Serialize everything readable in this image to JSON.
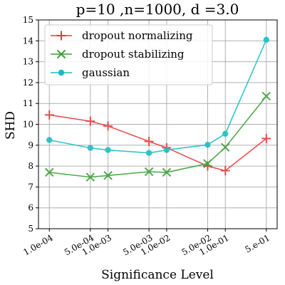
{
  "chart_data": {
    "type": "line",
    "title": "p=10 ,n=1000, d =3.0",
    "xlabel": "Significance Level",
    "ylabel": "SHD",
    "ylim": [
      5,
      15
    ],
    "yticks": [
      5,
      6,
      7,
      8,
      9,
      10,
      11,
      12,
      13,
      14,
      15
    ],
    "x": [
      0.0001,
      0.0005,
      0.001,
      0.005,
      0.01,
      0.05,
      0.1,
      0.5
    ],
    "x_scale": "log",
    "xtick_labels": [
      "1.0e-04",
      "5.0e-04",
      "1.0e-03",
      "5.0e-03",
      "1.0e-02",
      "5.0e-02",
      "1.0e-01",
      "5.e-01"
    ],
    "grid": true,
    "legend_position": "top-left",
    "series": [
      {
        "name": "dropout normalizing",
        "color": "#e8393c",
        "marker": "plus",
        "values": [
          10.45,
          10.15,
          9.92,
          9.18,
          8.88,
          8.0,
          7.78,
          9.32
        ]
      },
      {
        "name": "dropout stabilizing",
        "color": "#3a9e35",
        "marker": "x",
        "values": [
          7.7,
          7.47,
          7.55,
          7.73,
          7.7,
          8.12,
          8.9,
          11.35
        ]
      },
      {
        "name": "gaussian",
        "color": "#17bec1",
        "marker": "circle",
        "values": [
          9.25,
          8.87,
          8.77,
          8.63,
          8.77,
          9.02,
          9.55,
          14.05
        ]
      }
    ]
  }
}
